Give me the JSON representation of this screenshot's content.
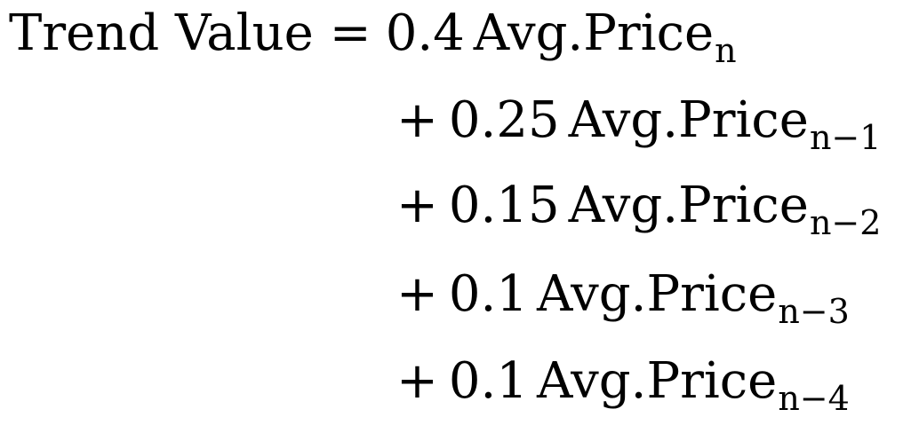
{
  "formula": {
    "lhs": "Trend Value",
    "equals": "=",
    "terms": [
      {
        "operator": "",
        "coefficient": "0.4",
        "variable": "Avg.Price",
        "subscript": "n"
      },
      {
        "operator": "+",
        "coefficient": "0.25",
        "variable": "Avg.Price",
        "subscript": "n−1"
      },
      {
        "operator": "+",
        "coefficient": "0.15",
        "variable": "Avg.Price",
        "subscript": "n−2"
      },
      {
        "operator": "+",
        "coefficient": "0.1",
        "variable": "Avg.Price",
        "subscript": "n−3"
      },
      {
        "operator": "+",
        "coefficient": "0.1",
        "variable": "Avg.Price",
        "subscript": "n−4"
      }
    ]
  }
}
